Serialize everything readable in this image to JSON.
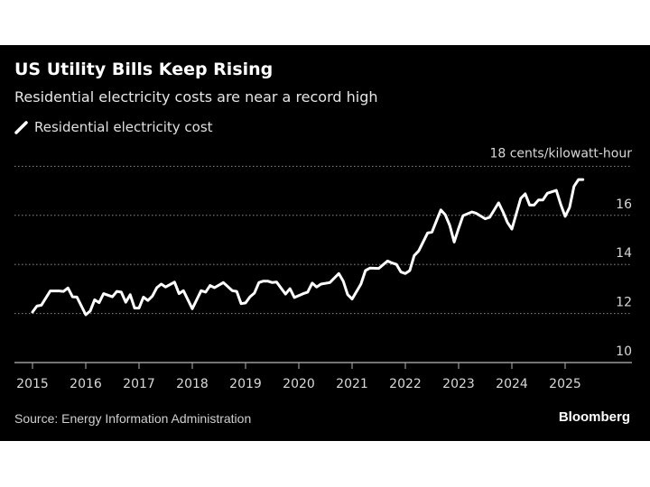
{
  "chart_data": {
    "type": "line",
    "title": "US Utility Bills Keep Rising",
    "subtitle": "Residential electricity costs are near a record high",
    "legend": "top-left",
    "source": "Source: Energy Information Administration",
    "brand": "Bloomberg",
    "ylabel_unit": "cents/kilowatt-hour",
    "ylim": [
      10,
      18
    ],
    "yticks": [
      10,
      12,
      14,
      16,
      18
    ],
    "ytick_labels": [
      "10",
      "12",
      "14",
      "16",
      "18 cents/kilowatt-hour"
    ],
    "xlim": [
      "2015-01",
      "2025-12"
    ],
    "xtick_labels": [
      "2015",
      "2016",
      "2017",
      "2018",
      "2019",
      "2020",
      "2021",
      "2022",
      "2023",
      "2024",
      "2025"
    ],
    "grid": "horizontal dotted",
    "background": "#000000",
    "series": [
      {
        "name": "Residential electricity cost",
        "color": "#ffffff",
        "points": [
          [
            "2015-01",
            12.06
          ],
          [
            "2015-02",
            12.3
          ],
          [
            "2015-03",
            12.34
          ],
          [
            "2015-05",
            12.92
          ],
          [
            "2015-07",
            12.92
          ],
          [
            "2015-08",
            12.9
          ],
          [
            "2015-09",
            13.04
          ],
          [
            "2015-10",
            12.68
          ],
          [
            "2015-11",
            12.67
          ],
          [
            "2016-01",
            11.95
          ],
          [
            "2016-02",
            12.1
          ],
          [
            "2016-03",
            12.56
          ],
          [
            "2016-04",
            12.44
          ],
          [
            "2016-05",
            12.81
          ],
          [
            "2016-07",
            12.68
          ],
          [
            "2016-08",
            12.9
          ],
          [
            "2016-09",
            12.87
          ],
          [
            "2016-10",
            12.46
          ],
          [
            "2016-11",
            12.77
          ],
          [
            "2016-12",
            12.22
          ],
          [
            "2017-01",
            12.22
          ],
          [
            "2017-02",
            12.67
          ],
          [
            "2017-03",
            12.53
          ],
          [
            "2017-04",
            12.71
          ],
          [
            "2017-05",
            13.05
          ],
          [
            "2017-06",
            13.2
          ],
          [
            "2017-07",
            13.08
          ],
          [
            "2017-09",
            13.28
          ],
          [
            "2017-10",
            12.81
          ],
          [
            "2017-11",
            12.93
          ],
          [
            "2018-01",
            12.19
          ],
          [
            "2018-03",
            12.93
          ],
          [
            "2018-04",
            12.87
          ],
          [
            "2018-05",
            13.14
          ],
          [
            "2018-06",
            13.05
          ],
          [
            "2018-08",
            13.26
          ],
          [
            "2018-10",
            12.93
          ],
          [
            "2018-11",
            12.9
          ],
          [
            "2018-12",
            12.4
          ],
          [
            "2019-01",
            12.43
          ],
          [
            "2019-02",
            12.68
          ],
          [
            "2019-03",
            12.83
          ],
          [
            "2019-04",
            13.26
          ],
          [
            "2019-05",
            13.32
          ],
          [
            "2019-06",
            13.32
          ],
          [
            "2019-07",
            13.26
          ],
          [
            "2019-08",
            13.28
          ],
          [
            "2019-10",
            12.79
          ],
          [
            "2019-11",
            13.01
          ],
          [
            "2019-12",
            12.65
          ],
          [
            "2020-02",
            12.81
          ],
          [
            "2020-03",
            12.87
          ],
          [
            "2020-04",
            13.24
          ],
          [
            "2020-05",
            13.08
          ],
          [
            "2020-06",
            13.2
          ],
          [
            "2020-08",
            13.26
          ],
          [
            "2020-10",
            13.63
          ],
          [
            "2020-11",
            13.32
          ],
          [
            "2020-12",
            12.77
          ],
          [
            "2021-01",
            12.59
          ],
          [
            "2021-03",
            13.2
          ],
          [
            "2021-04",
            13.75
          ],
          [
            "2021-05",
            13.85
          ],
          [
            "2021-07",
            13.84
          ],
          [
            "2021-09",
            14.14
          ],
          [
            "2021-10",
            14.06
          ],
          [
            "2021-11",
            14.0
          ],
          [
            "2021-12",
            13.69
          ],
          [
            "2022-01",
            13.63
          ],
          [
            "2022-02",
            13.75
          ],
          [
            "2022-03",
            14.36
          ],
          [
            "2022-04",
            14.55
          ],
          [
            "2022-06",
            15.28
          ],
          [
            "2022-07",
            15.32
          ],
          [
            "2022-09",
            16.22
          ],
          [
            "2022-10",
            16.02
          ],
          [
            "2022-11",
            15.59
          ],
          [
            "2022-12",
            14.91
          ],
          [
            "2023-01",
            15.47
          ],
          [
            "2023-02",
            15.99
          ],
          [
            "2023-04",
            16.14
          ],
          [
            "2023-05",
            16.08
          ],
          [
            "2023-07",
            15.86
          ],
          [
            "2023-08",
            15.92
          ],
          [
            "2023-10",
            16.51
          ],
          [
            "2023-11",
            16.14
          ],
          [
            "2023-12",
            15.71
          ],
          [
            "2024-01",
            15.44
          ],
          [
            "2024-03",
            16.69
          ],
          [
            "2024-04",
            16.88
          ],
          [
            "2024-05",
            16.42
          ],
          [
            "2024-06",
            16.42
          ],
          [
            "2024-07",
            16.63
          ],
          [
            "2024-08",
            16.63
          ],
          [
            "2024-09",
            16.9
          ],
          [
            "2024-11",
            17.02
          ],
          [
            "2024-12",
            16.45
          ],
          [
            "2025-01",
            15.96
          ],
          [
            "2025-02",
            16.32
          ],
          [
            "2025-03",
            17.18
          ],
          [
            "2025-04",
            17.46
          ],
          [
            "2025-05",
            17.46
          ]
        ]
      }
    ]
  }
}
